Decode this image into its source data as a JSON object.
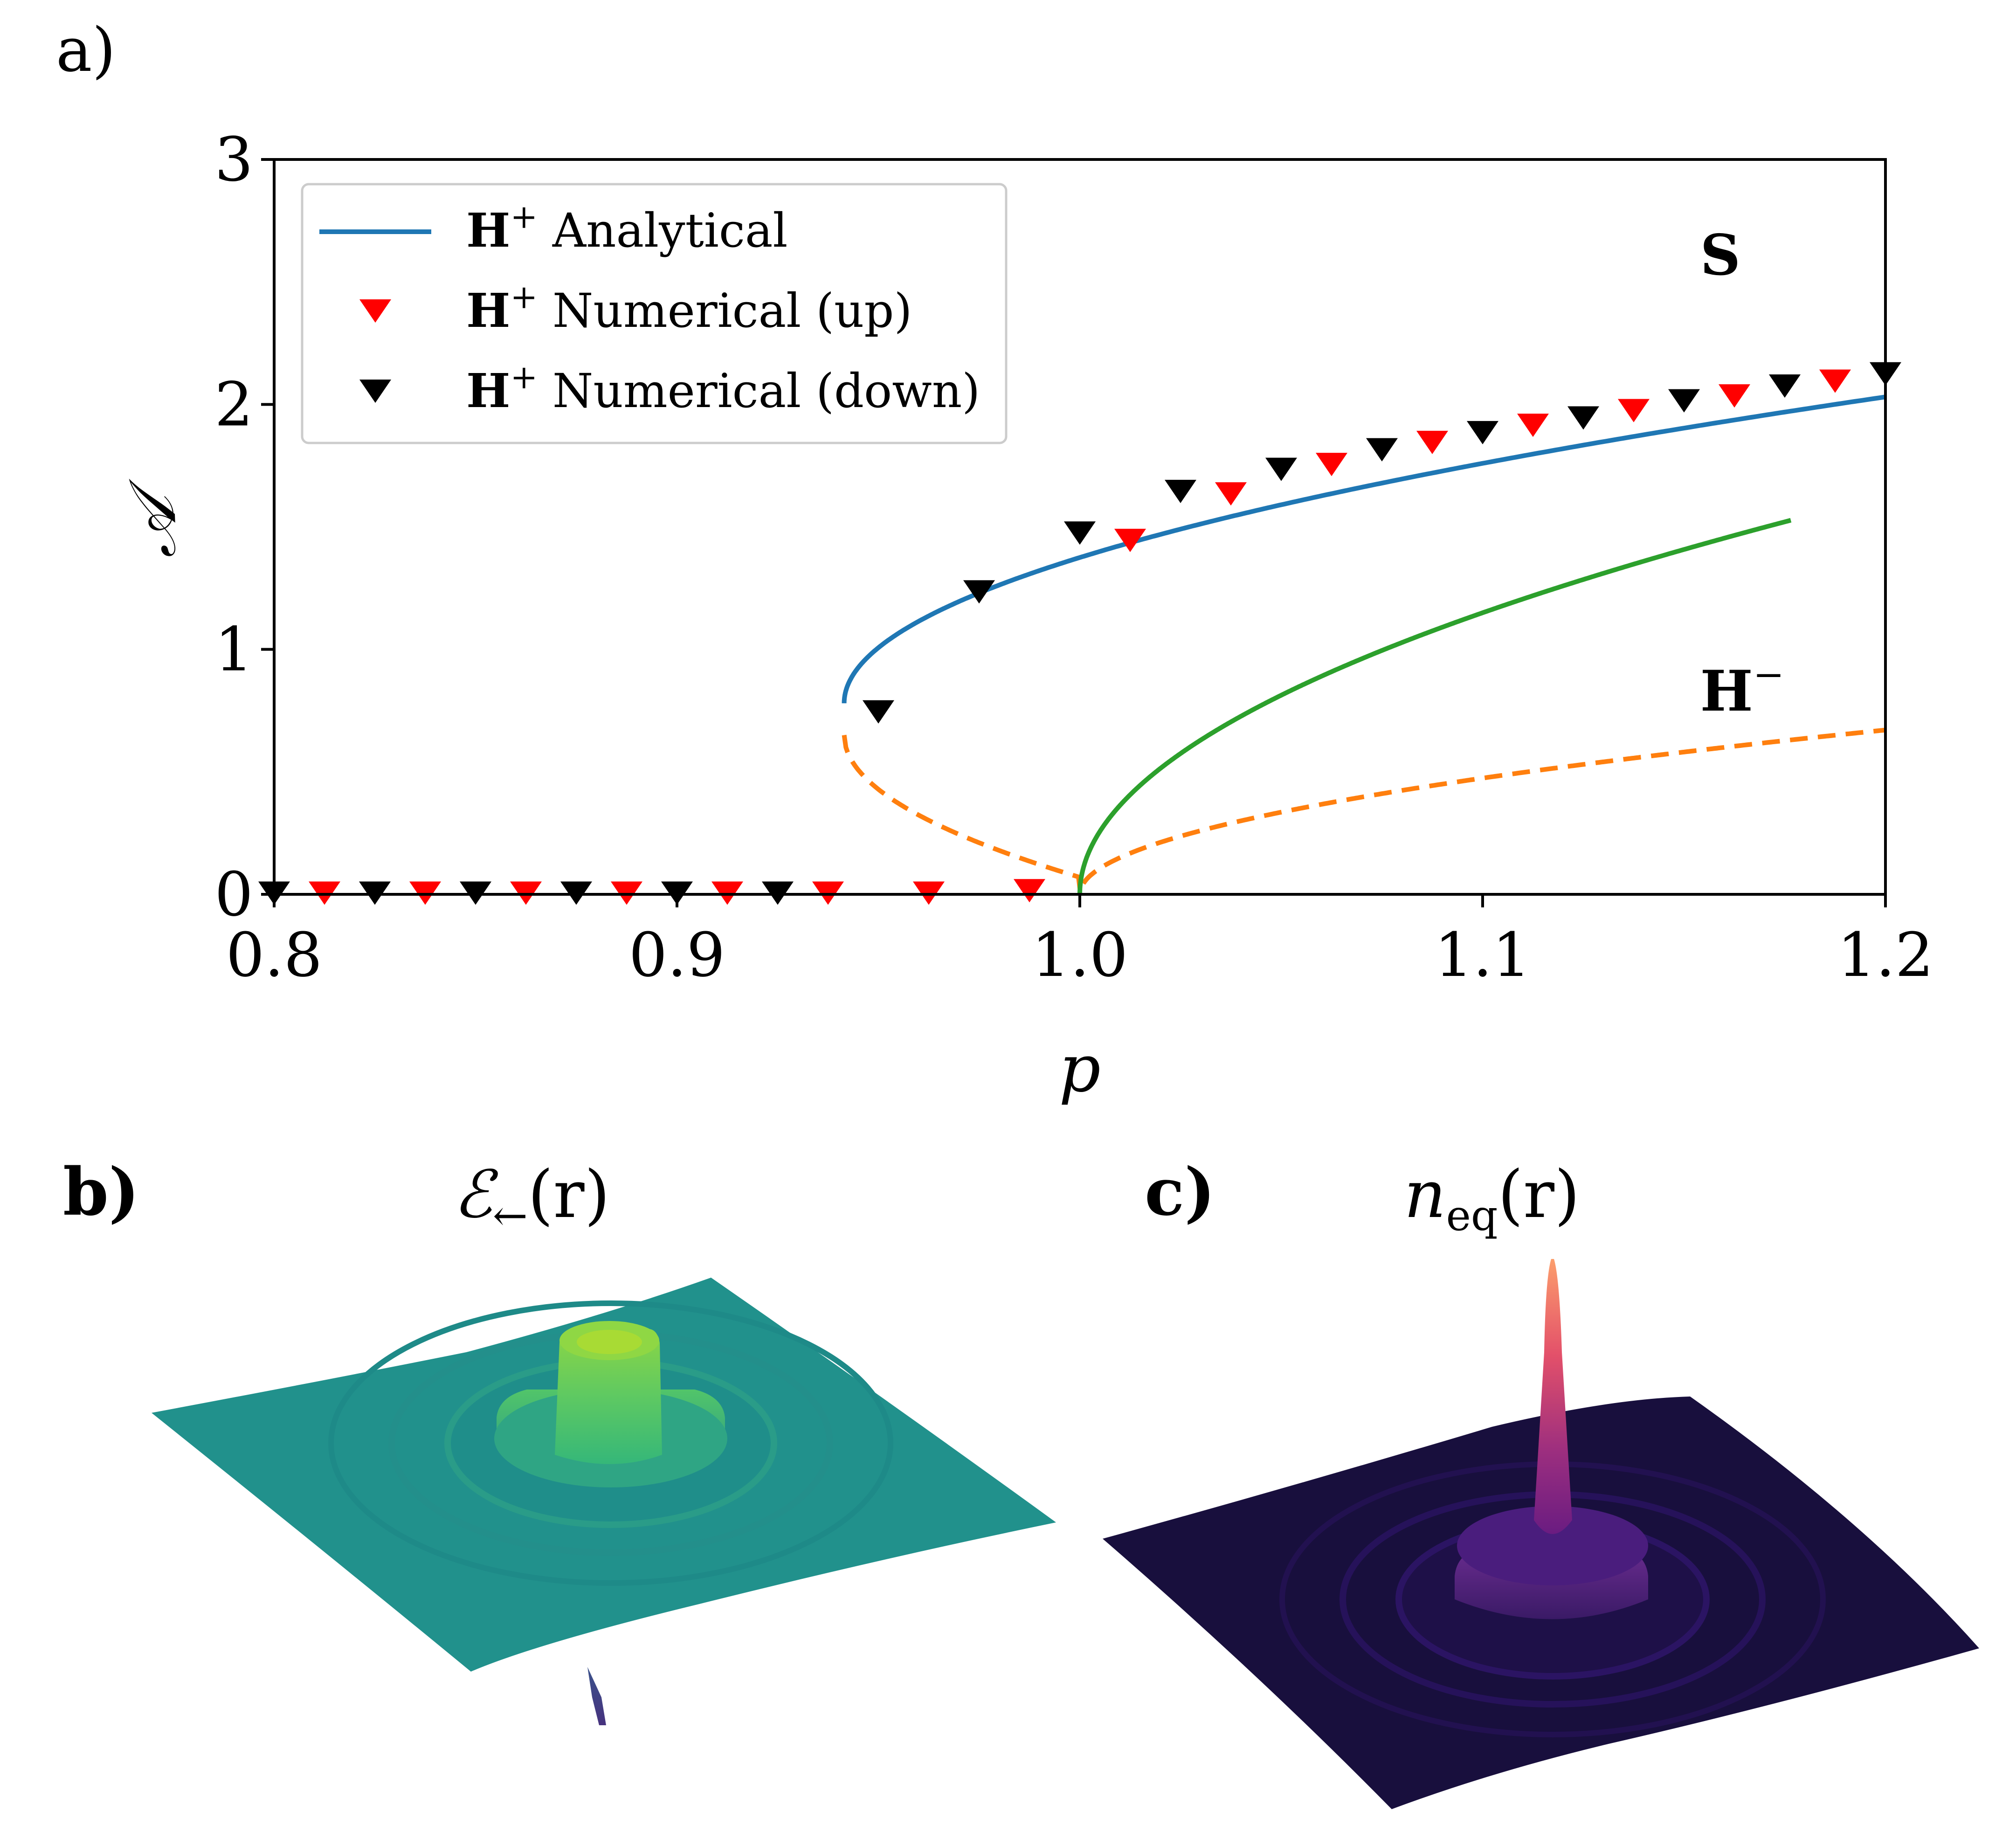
{
  "panels": {
    "a": {
      "label": "a)"
    },
    "b": {
      "label": "b)",
      "title_main": "ℰ",
      "title_sub": "←",
      "title_tail": "(r)",
      "colormap": "viridis"
    },
    "c": {
      "label": "c)",
      "title_main": "n",
      "title_sub": "eq",
      "title_tail": "(r)",
      "colormap": "magma"
    }
  },
  "chart_data": [
    {
      "type": "line",
      "panel": "a",
      "xlabel": "p",
      "ylabel": "𝒜",
      "xlim": [
        0.8,
        1.2
      ],
      "ylim": [
        0,
        3
      ],
      "xticks": [
        {
          "v": 0.8,
          "label": "0.8"
        },
        {
          "v": 0.9,
          "label": "0.9"
        },
        {
          "v": 1.0,
          "label": "1.0"
        },
        {
          "v": 1.1,
          "label": "1.1"
        },
        {
          "v": 1.2,
          "label": "1.2"
        }
      ],
      "yticks": [
        {
          "v": 0,
          "label": "0"
        },
        {
          "v": 1,
          "label": "1"
        },
        {
          "v": 2,
          "label": "2"
        },
        {
          "v": 3,
          "label": "3"
        }
      ],
      "legend_position": "top-left",
      "legend": [
        {
          "key": "analytical",
          "bold": "H",
          "sup": "+",
          "text": " Analytical",
          "color": "#1f77b4",
          "marker": "line"
        },
        {
          "key": "up",
          "bold": "H",
          "sup": "+",
          "text": " Numerical (up)",
          "color": "#ff0000",
          "marker": "triangle-down"
        },
        {
          "key": "down",
          "bold": "H",
          "sup": "+",
          "text": " Numerical (down)",
          "color": "#000000",
          "marker": "triangle-down"
        }
      ],
      "annotations": [
        {
          "key": "S",
          "text": "S",
          "sup": "",
          "x": 1.154,
          "y": 2.53
        },
        {
          "key": "Hminus",
          "text": "H",
          "sup": "−",
          "x": 1.154,
          "y": 0.75
        }
      ],
      "series": [
        {
          "name": "H+ Analytical",
          "color": "#1f77b4",
          "style": "solid",
          "curve": "upper_branch",
          "x_range": [
            0.9415,
            1.2
          ],
          "p_c": 0.9415,
          "c0": 0.78,
          "c1": 2.46
        },
        {
          "name": "H- (unstable)",
          "color": "#ff7f0e",
          "style": "dashed",
          "curve": "lower_branch",
          "x_range": [
            0.9415,
            1.2
          ],
          "p_c": 0.9415,
          "c0": 0.65,
          "c1": 2.4,
          "c2": 1.5
        },
        {
          "name": "S",
          "color": "#2ca02c",
          "style": "solid",
          "curve": "sqrt",
          "x_range": [
            1.0,
            1.1765
          ],
          "coef": 7.27
        }
      ],
      "points_up": [
        {
          "x": 0.8125,
          "y": 0.0
        },
        {
          "x": 0.8375,
          "y": 0.0
        },
        {
          "x": 0.8625,
          "y": 0.0
        },
        {
          "x": 0.8875,
          "y": 0.0
        },
        {
          "x": 0.9125,
          "y": 0.0
        },
        {
          "x": 0.9375,
          "y": 0.0
        },
        {
          "x": 0.9625,
          "y": 0.0
        },
        {
          "x": 0.9875,
          "y": 0.01
        },
        {
          "x": 1.0125,
          "y": 1.44
        },
        {
          "x": 1.0375,
          "y": 1.63
        },
        {
          "x": 1.0625,
          "y": 1.75
        },
        {
          "x": 1.0875,
          "y": 1.84
        },
        {
          "x": 1.1125,
          "y": 1.91
        },
        {
          "x": 1.1375,
          "y": 1.97
        },
        {
          "x": 1.1625,
          "y": 2.03
        },
        {
          "x": 1.1875,
          "y": 2.09
        }
      ],
      "points_down": [
        {
          "x": 0.8,
          "y": 0.0
        },
        {
          "x": 0.825,
          "y": 0.0
        },
        {
          "x": 0.85,
          "y": 0.0
        },
        {
          "x": 0.875,
          "y": 0.0
        },
        {
          "x": 0.9,
          "y": 0.0
        },
        {
          "x": 0.925,
          "y": 0.0
        },
        {
          "x": 0.95,
          "y": 0.74
        },
        {
          "x": 0.975,
          "y": 1.23
        },
        {
          "x": 1.0,
          "y": 1.47
        },
        {
          "x": 1.025,
          "y": 1.64
        },
        {
          "x": 1.05,
          "y": 1.73
        },
        {
          "x": 1.075,
          "y": 1.81
        },
        {
          "x": 1.1,
          "y": 1.88
        },
        {
          "x": 1.125,
          "y": 1.94
        },
        {
          "x": 1.15,
          "y": 2.01
        },
        {
          "x": 1.175,
          "y": 2.07
        },
        {
          "x": 1.2,
          "y": 2.12
        }
      ]
    }
  ]
}
